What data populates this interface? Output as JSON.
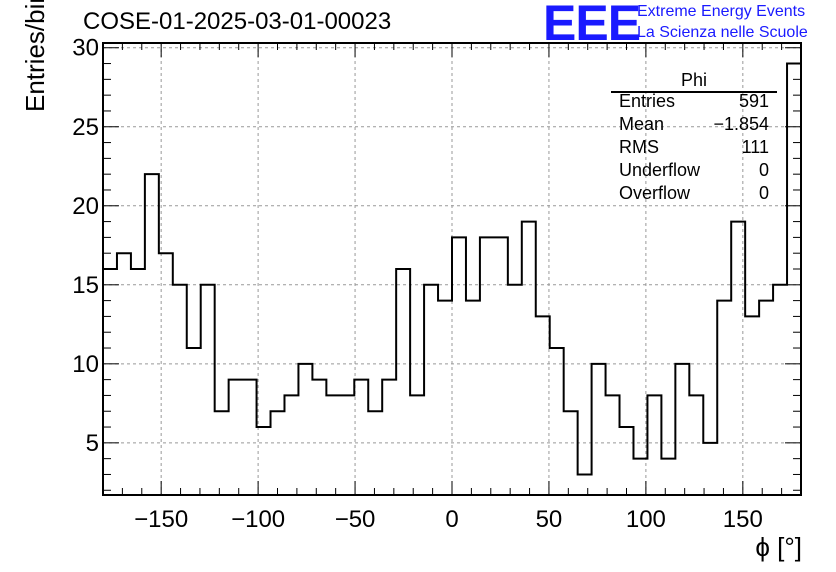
{
  "header": {
    "title": "COSE-01-2025-03-01-00023",
    "logo_text": "EEE",
    "logo_line1": "Extreme Energy Events",
    "logo_line2": "La Scienza nelle Scuole"
  },
  "stats_box": {
    "title": "Phi",
    "rows": [
      {
        "label": "Entries",
        "value": "591"
      },
      {
        "label": "Mean",
        "value": "−1.854"
      },
      {
        "label": "RMS",
        "value": "111"
      },
      {
        "label": "Underflow",
        "value": "0"
      },
      {
        "label": "Overflow",
        "value": "0"
      }
    ]
  },
  "chart_data": {
    "type": "histogram",
    "title": "COSE-01-2025-03-01-00023",
    "xlabel": "ϕ [°]",
    "ylabel": "Entries/bin",
    "xlim": [
      -180,
      180
    ],
    "ylim": [
      1.7,
      30.3
    ],
    "grid": true,
    "bin_edges_start": -180,
    "bin_width": 7.2,
    "values": [
      16,
      17,
      16,
      22,
      17,
      15,
      11,
      15,
      7,
      9,
      9,
      6,
      7,
      8,
      10,
      9,
      8,
      8,
      9,
      7,
      9,
      16,
      8,
      15,
      14,
      18,
      14,
      18,
      18,
      15,
      19,
      13,
      11,
      7,
      3,
      10,
      8,
      6,
      4,
      8,
      4,
      10,
      8,
      5,
      14,
      19,
      13,
      14,
      15,
      29
    ],
    "x_ticks": [
      -150,
      -100,
      -50,
      0,
      50,
      100,
      150
    ],
    "x_tick_labels": [
      "−150",
      "−100",
      "−50",
      "0",
      "50",
      "100",
      "150"
    ],
    "y_ticks": [
      5,
      10,
      15,
      20,
      25,
      30
    ],
    "y_tick_labels": [
      "5",
      "10",
      "15",
      "20",
      "25",
      "30"
    ]
  }
}
